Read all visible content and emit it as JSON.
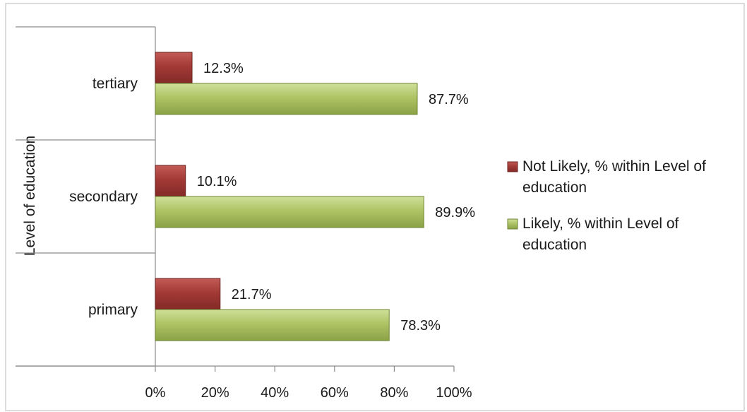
{
  "chart_data": {
    "type": "bar",
    "orientation": "horizontal",
    "categories": [
      "tertiary",
      "secondary",
      "primary"
    ],
    "series": [
      {
        "name": "Not Likely, % within Level of education",
        "values": [
          12.3,
          10.1,
          21.7
        ],
        "labels": [
          "12.3%",
          "10.1%",
          "21.7%"
        ],
        "color": "#a33a36"
      },
      {
        "name": "Likely, % within Level of education",
        "values": [
          87.7,
          89.9,
          78.3
        ],
        "labels": [
          "87.7%",
          "89.9%",
          "78.3%"
        ],
        "color": "#a8c060"
      }
    ],
    "ylabel": "Level of education",
    "xlim": [
      0,
      100
    ],
    "xticks": [
      "0%",
      "20%",
      "40%",
      "60%",
      "80%",
      "100%"
    ],
    "grid": false,
    "legend": "right"
  }
}
